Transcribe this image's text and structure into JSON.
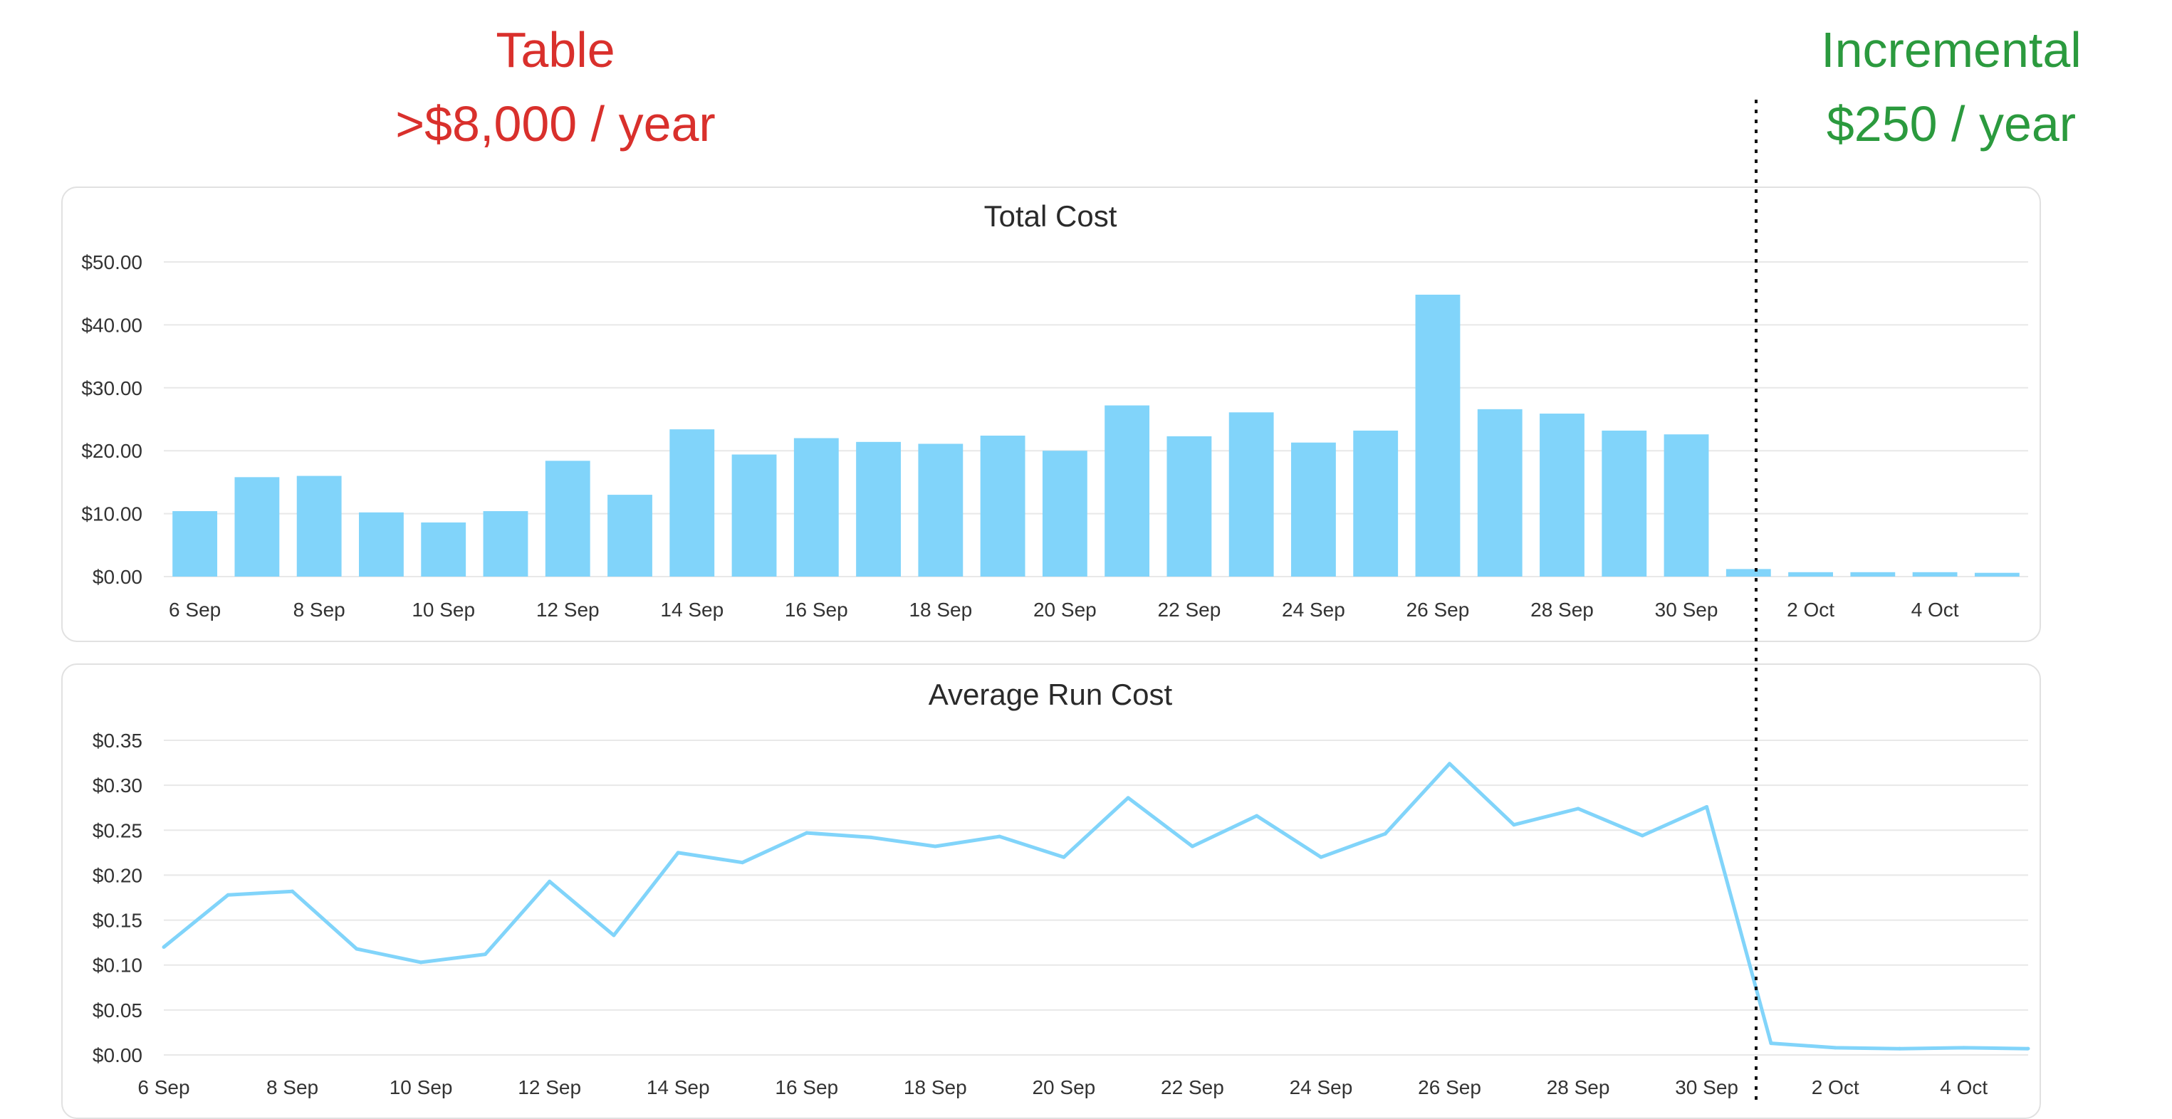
{
  "annotations": {
    "left_title": "Table",
    "left_subtitle": ">$8,000 / year",
    "right_title": "Incremental",
    "right_subtitle": "$250 / year",
    "left_color": "#d9302c",
    "right_color": "#2b9a3e"
  },
  "colors": {
    "series": "#81d4fa",
    "grid": "#e8e8e8",
    "panel_border": "#e1e1e1",
    "divider": "#111111"
  },
  "chart_data": [
    {
      "type": "bar",
      "title": "Total Cost",
      "categories": [
        "6 Sep",
        "7 Sep",
        "8 Sep",
        "9 Sep",
        "10 Sep",
        "11 Sep",
        "12 Sep",
        "13 Sep",
        "14 Sep",
        "15 Sep",
        "16 Sep",
        "17 Sep",
        "18 Sep",
        "19 Sep",
        "20 Sep",
        "21 Sep",
        "22 Sep",
        "23 Sep",
        "24 Sep",
        "25 Sep",
        "26 Sep",
        "27 Sep",
        "28 Sep",
        "29 Sep",
        "30 Sep",
        "1 Oct",
        "2 Oct",
        "3 Oct",
        "4 Oct",
        "5 Oct"
      ],
      "tick_labels": [
        "6 Sep",
        "8 Sep",
        "10 Sep",
        "12 Sep",
        "14 Sep",
        "16 Sep",
        "18 Sep",
        "20 Sep",
        "22 Sep",
        "24 Sep",
        "26 Sep",
        "28 Sep",
        "30 Sep",
        "2 Oct",
        "4 Oct"
      ],
      "values": [
        10.4,
        15.8,
        16.0,
        10.2,
        8.6,
        10.4,
        18.4,
        13.0,
        23.4,
        19.4,
        22.0,
        21.4,
        21.1,
        22.4,
        20.0,
        27.2,
        22.3,
        26.1,
        21.3,
        23.2,
        44.8,
        26.6,
        25.9,
        23.2,
        22.6,
        1.2,
        0.7,
        0.7,
        0.7,
        0.6
      ],
      "y_ticks": [
        "$0.00",
        "$10.00",
        "$20.00",
        "$30.00",
        "$40.00",
        "$50.00"
      ],
      "ylim": [
        0,
        50
      ],
      "grid": true
    },
    {
      "type": "line",
      "title": "Average Run Cost",
      "categories": [
        "6 Sep",
        "7 Sep",
        "8 Sep",
        "9 Sep",
        "10 Sep",
        "11 Sep",
        "12 Sep",
        "13 Sep",
        "14 Sep",
        "15 Sep",
        "16 Sep",
        "17 Sep",
        "18 Sep",
        "19 Sep",
        "20 Sep",
        "21 Sep",
        "22 Sep",
        "23 Sep",
        "24 Sep",
        "25 Sep",
        "26 Sep",
        "27 Sep",
        "28 Sep",
        "29 Sep",
        "30 Sep",
        "1 Oct",
        "2 Oct",
        "3 Oct",
        "4 Oct",
        "5 Oct"
      ],
      "tick_labels": [
        "6 Sep",
        "8 Sep",
        "10 Sep",
        "12 Sep",
        "14 Sep",
        "16 Sep",
        "18 Sep",
        "20 Sep",
        "22 Sep",
        "24 Sep",
        "26 Sep",
        "28 Sep",
        "30 Sep",
        "2 Oct",
        "4 Oct"
      ],
      "values": [
        0.12,
        0.178,
        0.182,
        0.118,
        0.103,
        0.112,
        0.193,
        0.133,
        0.225,
        0.214,
        0.247,
        0.242,
        0.232,
        0.243,
        0.22,
        0.286,
        0.232,
        0.266,
        0.22,
        0.246,
        0.324,
        0.256,
        0.274,
        0.244,
        0.276,
        0.013,
        0.008,
        0.007,
        0.008,
        0.007
      ],
      "y_ticks": [
        "$0.00",
        "$0.05",
        "$0.10",
        "$0.15",
        "$0.20",
        "$0.25",
        "$0.30",
        "$0.35"
      ],
      "ylim": [
        0,
        0.35
      ],
      "grid": true
    }
  ]
}
